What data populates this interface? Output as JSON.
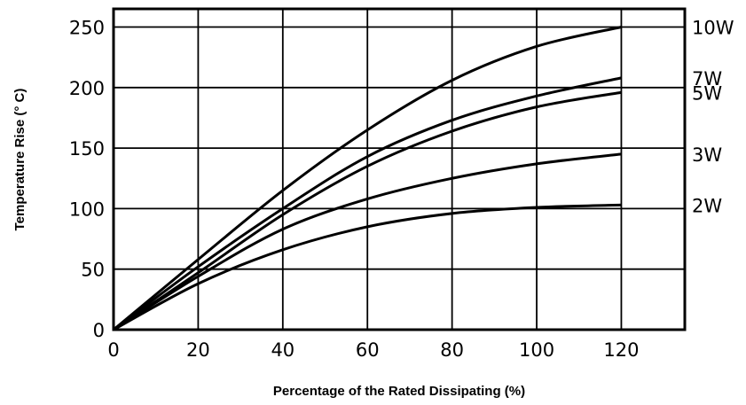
{
  "chart_data": {
    "type": "line",
    "xlabel": "Percentage of the Rated Dissipating (%)",
    "ylabel": "Temperature Rise (° C)",
    "xlim": [
      0,
      135
    ],
    "ylim": [
      0,
      265
    ],
    "grid": true,
    "x_ticks": [
      0,
      20,
      40,
      60,
      80,
      100,
      120
    ],
    "x_tick_labels": [
      "0",
      "20",
      "40",
      "60",
      "80",
      "100",
      "120"
    ],
    "y_ticks": [
      0,
      50,
      100,
      150,
      200,
      250
    ],
    "y_tick_labels": [
      "0",
      "50",
      "100",
      "150",
      "200",
      "250"
    ],
    "x": [
      0,
      20,
      40,
      60,
      80,
      100,
      120
    ],
    "series": [
      {
        "name": "10W",
        "values": [
          0,
          58,
          115,
          165,
          206,
          234,
          250
        ]
      },
      {
        "name": "7W",
        "values": [
          0,
          52,
          100,
          143,
          173,
          193,
          208
        ]
      },
      {
        "name": "5W",
        "values": [
          0,
          47,
          95,
          135,
          164,
          184,
          196
        ]
      },
      {
        "name": "3W",
        "values": [
          0,
          44,
          83,
          108,
          125,
          137,
          145
        ]
      },
      {
        "name": "2W",
        "values": [
          0,
          38,
          66,
          85,
          96,
          101,
          103
        ]
      }
    ],
    "colors": {
      "line": "#000000",
      "grid": "#000000"
    }
  }
}
